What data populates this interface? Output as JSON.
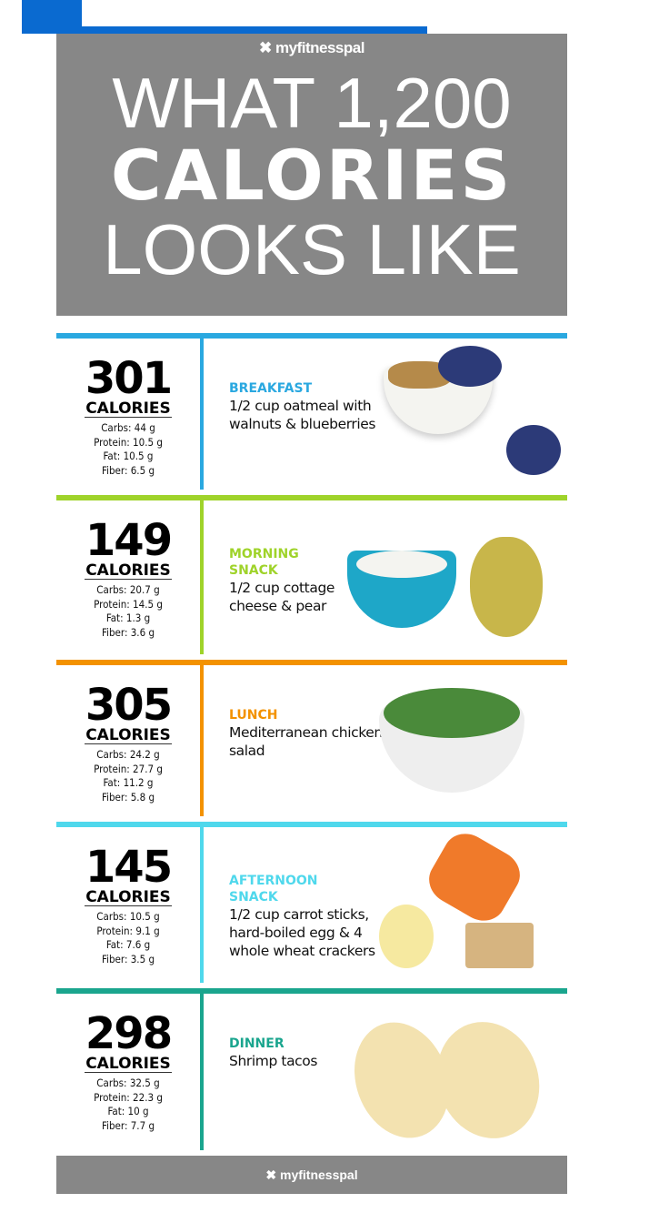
{
  "header": {
    "logo": "myfitnesspal",
    "title_line1": "WHAT 1,200",
    "title_line2": "CALORIES",
    "title_line3": "LOOKS LIKE"
  },
  "meals": [
    {
      "calories": "301",
      "calories_label": "CALORIES",
      "macros": [
        "Carbs: 44 g",
        "Protein: 10.5 g",
        "Fat: 10.5 g",
        "Fiber: 6.5 g"
      ],
      "meal": "BREAKFAST",
      "description": "1/2 cup oatmeal with walnuts & blueberries",
      "color": "#2aa8e0"
    },
    {
      "calories": "149",
      "calories_label": "CALORIES",
      "macros": [
        "Carbs: 20.7 g",
        "Protein: 14.5 g",
        "Fat: 1.3 g",
        "Fiber: 3.6 g"
      ],
      "meal": "MORNING SNACK",
      "description": "1/2 cup cottage cheese & pear",
      "color": "#9fd32a"
    },
    {
      "calories": "305",
      "calories_label": "CALORIES",
      "macros": [
        "Carbs: 24.2 g",
        "Protein: 27.7 g",
        "Fat: 11.2 g",
        "Fiber: 5.8 g"
      ],
      "meal": "LUNCH",
      "description": "Mediterranean chicken salad",
      "color": "#f39200"
    },
    {
      "calories": "145",
      "calories_label": "CALORIES",
      "macros": [
        "Carbs: 10.5 g",
        "Protein: 9.1 g",
        "Fat: 7.6 g",
        "Fiber: 3.5 g"
      ],
      "meal": "AFTERNOON SNACK",
      "description": "1/2 cup carrot sticks, hard-boiled egg & 4 whole wheat crackers",
      "color": "#4fd8ec"
    },
    {
      "calories": "298",
      "calories_label": "CALORIES",
      "macros": [
        "Carbs: 32.5 g",
        "Protein: 22.3 g",
        "Fat: 10 g",
        "Fiber: 7.7 g"
      ],
      "meal": "DINNER",
      "description": "Shrimp tacos",
      "color": "#1aa58e"
    }
  ],
  "footer": {
    "logo": "myfitnesspal"
  }
}
